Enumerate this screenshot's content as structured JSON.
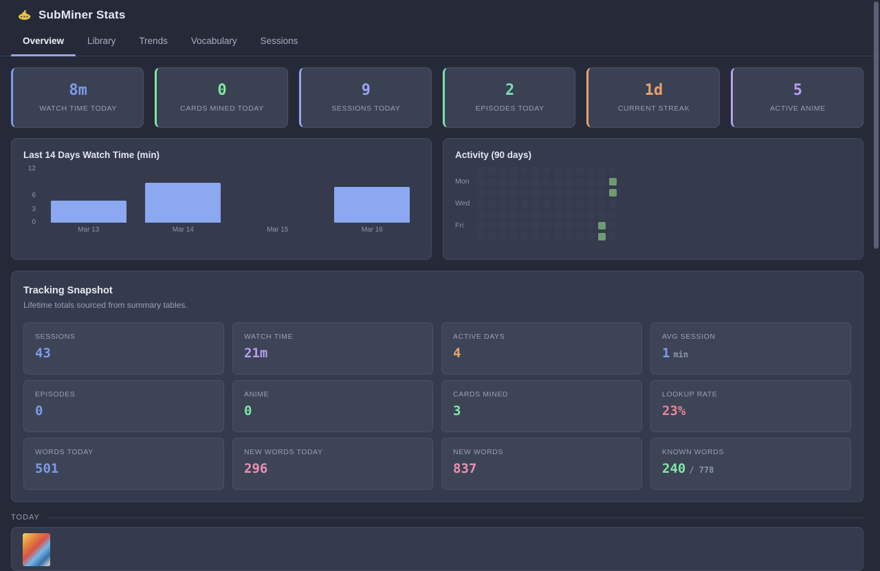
{
  "app": {
    "title": "SubMiner Stats",
    "logo_icon": "submarine-icon"
  },
  "tabs": [
    {
      "label": "Overview",
      "active": true
    },
    {
      "label": "Library",
      "active": false
    },
    {
      "label": "Trends",
      "active": false
    },
    {
      "label": "Vocabulary",
      "active": false
    },
    {
      "label": "Sessions",
      "active": false
    }
  ],
  "stat_cards": [
    {
      "value": "8m",
      "label": "WATCH TIME TODAY",
      "color": "#7d9bea"
    },
    {
      "value": "0",
      "label": "CARDS MINED TODAY",
      "color": "#7fe8a4"
    },
    {
      "value": "9",
      "label": "SESSIONS TODAY",
      "color": "#96a5f2"
    },
    {
      "value": "2",
      "label": "EPISODES TODAY",
      "color": "#7de0b2"
    },
    {
      "value": "1d",
      "label": "CURRENT STREAK",
      "color": "#e8a36c"
    },
    {
      "value": "5",
      "label": "ACTIVE ANIME",
      "color": "#b89df0"
    }
  ],
  "chart_data": {
    "type": "bar",
    "title": "Last 14 Days Watch Time (min)",
    "categories": [
      "Mar 13",
      "Mar 14",
      "Mar 15",
      "Mar 16"
    ],
    "values": [
      5,
      9,
      0,
      8
    ],
    "xlabel": "",
    "ylabel": "",
    "ylim": [
      0,
      12
    ],
    "yticks": [
      12,
      6,
      3,
      0
    ],
    "grid": false,
    "bar_color": "#8ca8f0"
  },
  "activity": {
    "title": "Activity (90 days)",
    "row_labels": [
      "Mon",
      "Wed",
      "Fri"
    ],
    "rows": 7,
    "cols": 13,
    "active_cells": [
      [
        1,
        12
      ],
      [
        2,
        12
      ],
      [
        5,
        11
      ],
      [
        6,
        11
      ]
    ],
    "cell_color": "#6e9a74"
  },
  "tracking": {
    "title": "Tracking Snapshot",
    "subtitle": "Lifetime totals sourced from summary tables.",
    "tiles": [
      {
        "label": "SESSIONS",
        "value": "43",
        "suffix": "",
        "color": "#7d9bea"
      },
      {
        "label": "WATCH TIME",
        "value": "21m",
        "suffix": "",
        "color": "#b89df0"
      },
      {
        "label": "ACTIVE DAYS",
        "value": "4",
        "suffix": "",
        "color": "#e8a36c"
      },
      {
        "label": "AVG SESSION",
        "value": "1",
        "suffix": "min",
        "color": "#7d9bea"
      },
      {
        "label": "EPISODES",
        "value": "0",
        "suffix": "",
        "color": "#7d9bea"
      },
      {
        "label": "ANIME",
        "value": "0",
        "suffix": "",
        "color": "#7fe8a4"
      },
      {
        "label": "CARDS MINED",
        "value": "3",
        "suffix": "",
        "color": "#7fe8a4"
      },
      {
        "label": "LOOKUP RATE",
        "value": "23%",
        "suffix": "",
        "color": "#ec8396"
      },
      {
        "label": "WORDS TODAY",
        "value": "501",
        "suffix": "",
        "color": "#7d9bea"
      },
      {
        "label": "NEW WORDS TODAY",
        "value": "296",
        "suffix": "",
        "color": "#ee8fb2"
      },
      {
        "label": "NEW WORDS",
        "value": "837",
        "suffix": "",
        "color": "#ee8fb2"
      },
      {
        "label": "KNOWN WORDS",
        "value": "240",
        "suffix": "/ 778",
        "color": "#7fe8a4"
      }
    ]
  },
  "today": {
    "label": "TODAY"
  }
}
